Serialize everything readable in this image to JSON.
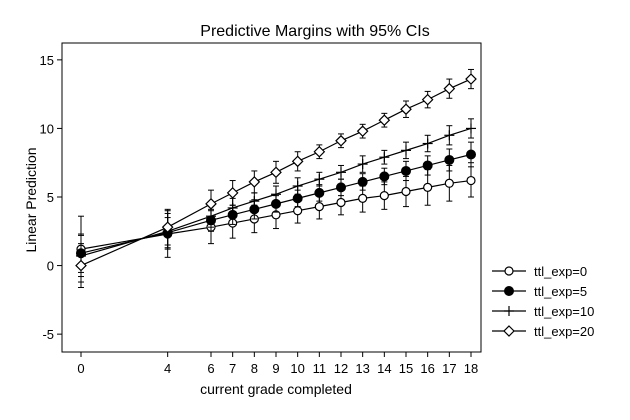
{
  "chart_data": {
    "type": "line",
    "title": "Predictive Margins with 95% CIs",
    "xlabel": "current grade completed",
    "ylabel": "Linear Prediction",
    "x": [
      0,
      4,
      6,
      7,
      8,
      9,
      10,
      11,
      12,
      13,
      14,
      15,
      16,
      17,
      18
    ],
    "xticks": [
      0,
      4,
      6,
      7,
      8,
      9,
      10,
      11,
      12,
      13,
      14,
      15,
      16,
      17,
      18
    ],
    "yticks": [
      -5,
      0,
      5,
      10,
      15
    ],
    "xlim": [
      0,
      18
    ],
    "ylim": [
      -5.5,
      15.5
    ],
    "grid": false,
    "legend_position": "right",
    "series": [
      {
        "name": "ttl_exp=0",
        "marker": "hollow-circle",
        "values": [
          1.2,
          2.3,
          2.8,
          3.1,
          3.4,
          3.7,
          4.0,
          4.3,
          4.6,
          4.9,
          5.1,
          5.4,
          5.7,
          6.0,
          6.2
        ],
        "lower": [
          -1.2,
          0.6,
          1.6,
          2.0,
          2.4,
          2.7,
          3.1,
          3.4,
          3.7,
          3.9,
          4.1,
          4.3,
          4.4,
          4.7,
          5.0
        ],
        "upper": [
          3.6,
          4.0,
          4.0,
          4.2,
          4.4,
          4.7,
          5.0,
          5.2,
          5.5,
          5.8,
          6.1,
          6.5,
          7.0,
          7.3,
          7.5
        ]
      },
      {
        "name": "ttl_exp=5",
        "marker": "filled-circle",
        "values": [
          0.9,
          2.4,
          3.3,
          3.7,
          4.1,
          4.5,
          4.9,
          5.3,
          5.7,
          6.1,
          6.5,
          6.9,
          7.3,
          7.7,
          8.1
        ],
        "lower": [
          -0.5,
          1.3,
          2.5,
          3.0,
          3.4,
          3.9,
          4.3,
          4.7,
          5.1,
          5.5,
          5.9,
          6.2,
          6.6,
          6.9,
          7.2
        ],
        "upper": [
          2.3,
          3.5,
          4.1,
          4.4,
          4.8,
          5.1,
          5.5,
          5.9,
          6.3,
          6.7,
          7.1,
          7.6,
          8.0,
          8.5,
          9.0
        ]
      },
      {
        "name": "ttl_exp=10",
        "marker": "plus",
        "values": [
          0.7,
          2.5,
          3.6,
          4.2,
          4.7,
          5.2,
          5.8,
          6.3,
          6.8,
          7.4,
          7.9,
          8.4,
          8.9,
          9.5,
          10.0
        ],
        "lower": [
          -0.8,
          1.2,
          2.8,
          3.5,
          4.1,
          4.6,
          5.2,
          5.8,
          6.3,
          6.8,
          7.4,
          7.8,
          8.3,
          8.8,
          9.3
        ],
        "upper": [
          2.2,
          3.8,
          4.4,
          4.9,
          5.3,
          5.8,
          6.4,
          6.8,
          7.3,
          8.0,
          8.4,
          9.0,
          9.5,
          10.2,
          10.7
        ]
      },
      {
        "name": "ttl_exp=20",
        "marker": "hollow-diamond",
        "values": [
          0.0,
          2.8,
          4.5,
          5.3,
          6.1,
          6.8,
          7.6,
          8.3,
          9.1,
          9.8,
          10.6,
          11.4,
          12.1,
          12.9,
          13.6
        ],
        "lower": [
          -1.6,
          1.5,
          3.5,
          4.4,
          5.3,
          6.0,
          6.9,
          7.8,
          8.6,
          9.3,
          10.1,
          10.8,
          11.5,
          12.2,
          12.9
        ],
        "upper": [
          1.6,
          4.1,
          5.5,
          6.2,
          6.9,
          7.6,
          8.3,
          8.8,
          9.6,
          10.3,
          11.1,
          12.0,
          12.7,
          13.6,
          14.3
        ]
      }
    ]
  }
}
